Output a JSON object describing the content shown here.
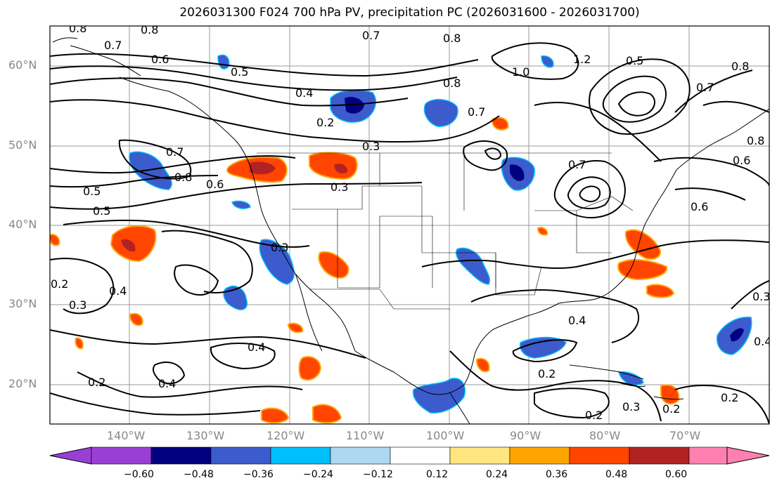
{
  "title": "2026031300 F024 700 hPa PV, precipitation PC (2026031600 - 2026031700)",
  "latitude_labels": [
    "60°N",
    "50°N",
    "40°N",
    "30°N",
    "20°N"
  ],
  "longitude_labels": [
    "140°W",
    "130°W",
    "120°W",
    "110°W",
    "100°W",
    "90°W",
    "80°W",
    "70°W"
  ],
  "colorbar": {
    "tick_labels": [
      "−0.60",
      "−0.48",
      "−0.36",
      "−0.24",
      "−0.12",
      "0.12",
      "0.24",
      "0.36",
      "0.48",
      "0.60"
    ],
    "colors": [
      "#9a3fd6",
      "#000080",
      "#3c5bcc",
      "#00bfff",
      "#add8f0",
      "#ffffff",
      "#ffe680",
      "#ffa500",
      "#ff4500",
      "#b22222",
      "#ff80b0"
    ]
  },
  "contour_labels": [
    "0.8",
    "0.8",
    "0.7",
    "0.7",
    "0.8",
    "0.6",
    "0.5",
    "1.0",
    "1.2",
    "0.5",
    "0.8",
    "0.4",
    "0.2",
    "0.8",
    "0.7",
    "0.3",
    "0.8",
    "0.7",
    "0.7",
    "0.6",
    "0.3",
    "0.6",
    "0.5",
    "0.5",
    "0.3",
    "0.2",
    "0.4",
    "0.3",
    "0.4",
    "0.4",
    "0.4",
    "0.2",
    "0.2",
    "0.2",
    "0.3",
    "0.2",
    "0.2",
    "0.3",
    "0.4",
    "0.8",
    "0.6",
    "0.7"
  ],
  "colors": {
    "contour": "#000000",
    "grid": "#9a9a9a",
    "coast": "#000000"
  }
}
